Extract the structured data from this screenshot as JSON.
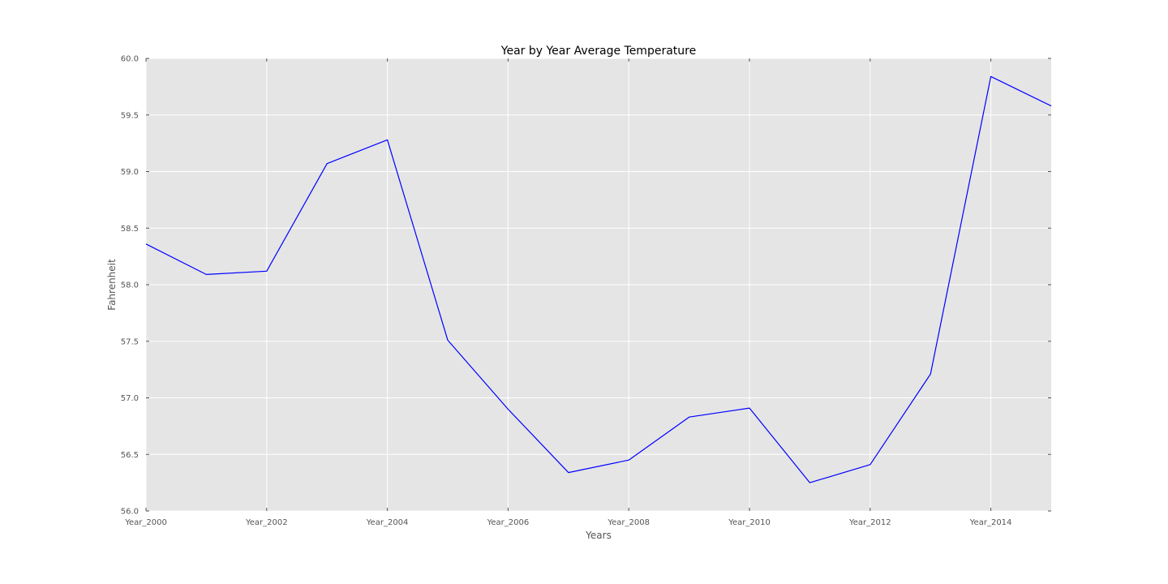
{
  "chart_data": {
    "type": "line",
    "title": "Year by Year Average Temperature",
    "xlabel": "Years",
    "ylabel": "Fahrenheit",
    "xlim": [
      0,
      15
    ],
    "ylim": [
      56.0,
      60.0
    ],
    "grid": true,
    "legend": "none",
    "x_ticks": [
      {
        "pos": 0,
        "label": "Year_2000"
      },
      {
        "pos": 2,
        "label": "Year_2002"
      },
      {
        "pos": 4,
        "label": "Year_2004"
      },
      {
        "pos": 6,
        "label": "Year_2006"
      },
      {
        "pos": 8,
        "label": "Year_2008"
      },
      {
        "pos": 10,
        "label": "Year_2010"
      },
      {
        "pos": 12,
        "label": "Year_2012"
      },
      {
        "pos": 14,
        "label": "Year_2014"
      }
    ],
    "y_ticks": [
      {
        "value": 56.0,
        "label": "56.0"
      },
      {
        "value": 56.5,
        "label": "56.5"
      },
      {
        "value": 57.0,
        "label": "57.0"
      },
      {
        "value": 57.5,
        "label": "57.5"
      },
      {
        "value": 58.0,
        "label": "58.0"
      },
      {
        "value": 58.5,
        "label": "58.5"
      },
      {
        "value": 59.0,
        "label": "59.0"
      },
      {
        "value": 59.5,
        "label": "59.5"
      },
      {
        "value": 60.0,
        "label": "60.0"
      }
    ],
    "series": [
      {
        "color": "#0000ff",
        "x": [
          0,
          1,
          2,
          3,
          4,
          5,
          6,
          7,
          8,
          9,
          10,
          11,
          12,
          13,
          14,
          15
        ],
        "values": [
          58.36,
          58.09,
          58.12,
          59.07,
          59.28,
          57.51,
          56.9,
          56.34,
          56.45,
          56.83,
          56.91,
          56.25,
          56.41,
          57.21,
          59.84,
          59.58
        ]
      }
    ],
    "colors": {
      "plot_background": "#e5e5e5",
      "grid": "#ffffff",
      "tick": "#555555"
    }
  }
}
